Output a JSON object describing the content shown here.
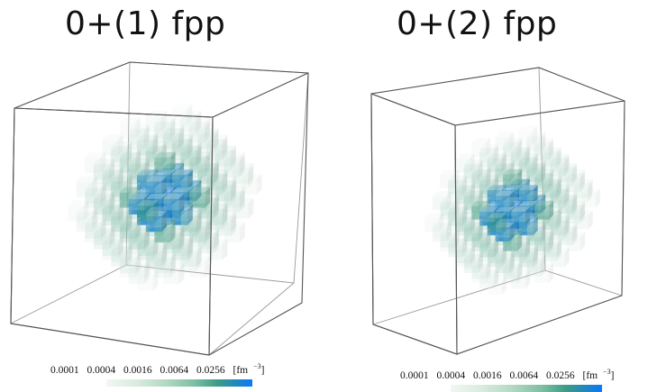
{
  "panels": [
    {
      "title": "0+(1) fpp",
      "colorbar": {
        "ticks": [
          "0.0001",
          "0.0004",
          "0.0016",
          "0.0064",
          "0.0256"
        ],
        "unit_base": "[fm",
        "unit_exp": "−3",
        "unit_close": "]"
      }
    },
    {
      "title": "0+(2) fpp",
      "colorbar": {
        "ticks": [
          "0.0001",
          "0.0004",
          "0.0016",
          "0.0064",
          "0.0256"
        ],
        "unit_base": "[fm",
        "unit_exp": "−3",
        "unit_close": "]"
      }
    }
  ],
  "colors": {
    "frame": "#555555",
    "low": "#e6f1ea",
    "mid": "#3f9d84",
    "high": "#0a78ff"
  }
}
